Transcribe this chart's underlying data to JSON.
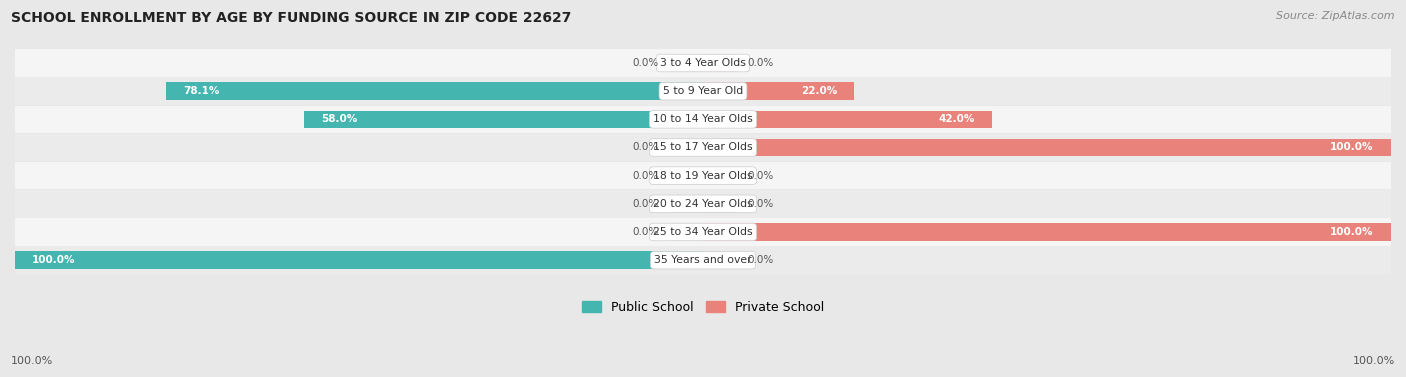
{
  "title": "SCHOOL ENROLLMENT BY AGE BY FUNDING SOURCE IN ZIP CODE 22627",
  "source": "Source: ZipAtlas.com",
  "categories": [
    "3 to 4 Year Olds",
    "5 to 9 Year Old",
    "10 to 14 Year Olds",
    "15 to 17 Year Olds",
    "18 to 19 Year Olds",
    "20 to 24 Year Olds",
    "25 to 34 Year Olds",
    "35 Years and over"
  ],
  "public": [
    0.0,
    78.1,
    58.0,
    0.0,
    0.0,
    0.0,
    0.0,
    100.0
  ],
  "private": [
    0.0,
    22.0,
    42.0,
    100.0,
    0.0,
    0.0,
    100.0,
    0.0
  ],
  "public_color": "#45b5b0",
  "private_color": "#e8827a",
  "public_stub_color": "#a8dbd9",
  "private_stub_color": "#f2b8b3",
  "public_label": "Public School",
  "private_label": "Private School",
  "bg_color": "#e8e8e8",
  "row_color_odd": "#f5f5f5",
  "row_color_even": "#ebebeb",
  "axis_label_left": "100.0%",
  "axis_label_right": "100.0%",
  "bar_height": 0.62,
  "stub_size": 5.0,
  "fig_width": 14.06,
  "fig_height": 3.77,
  "xlim": 100
}
